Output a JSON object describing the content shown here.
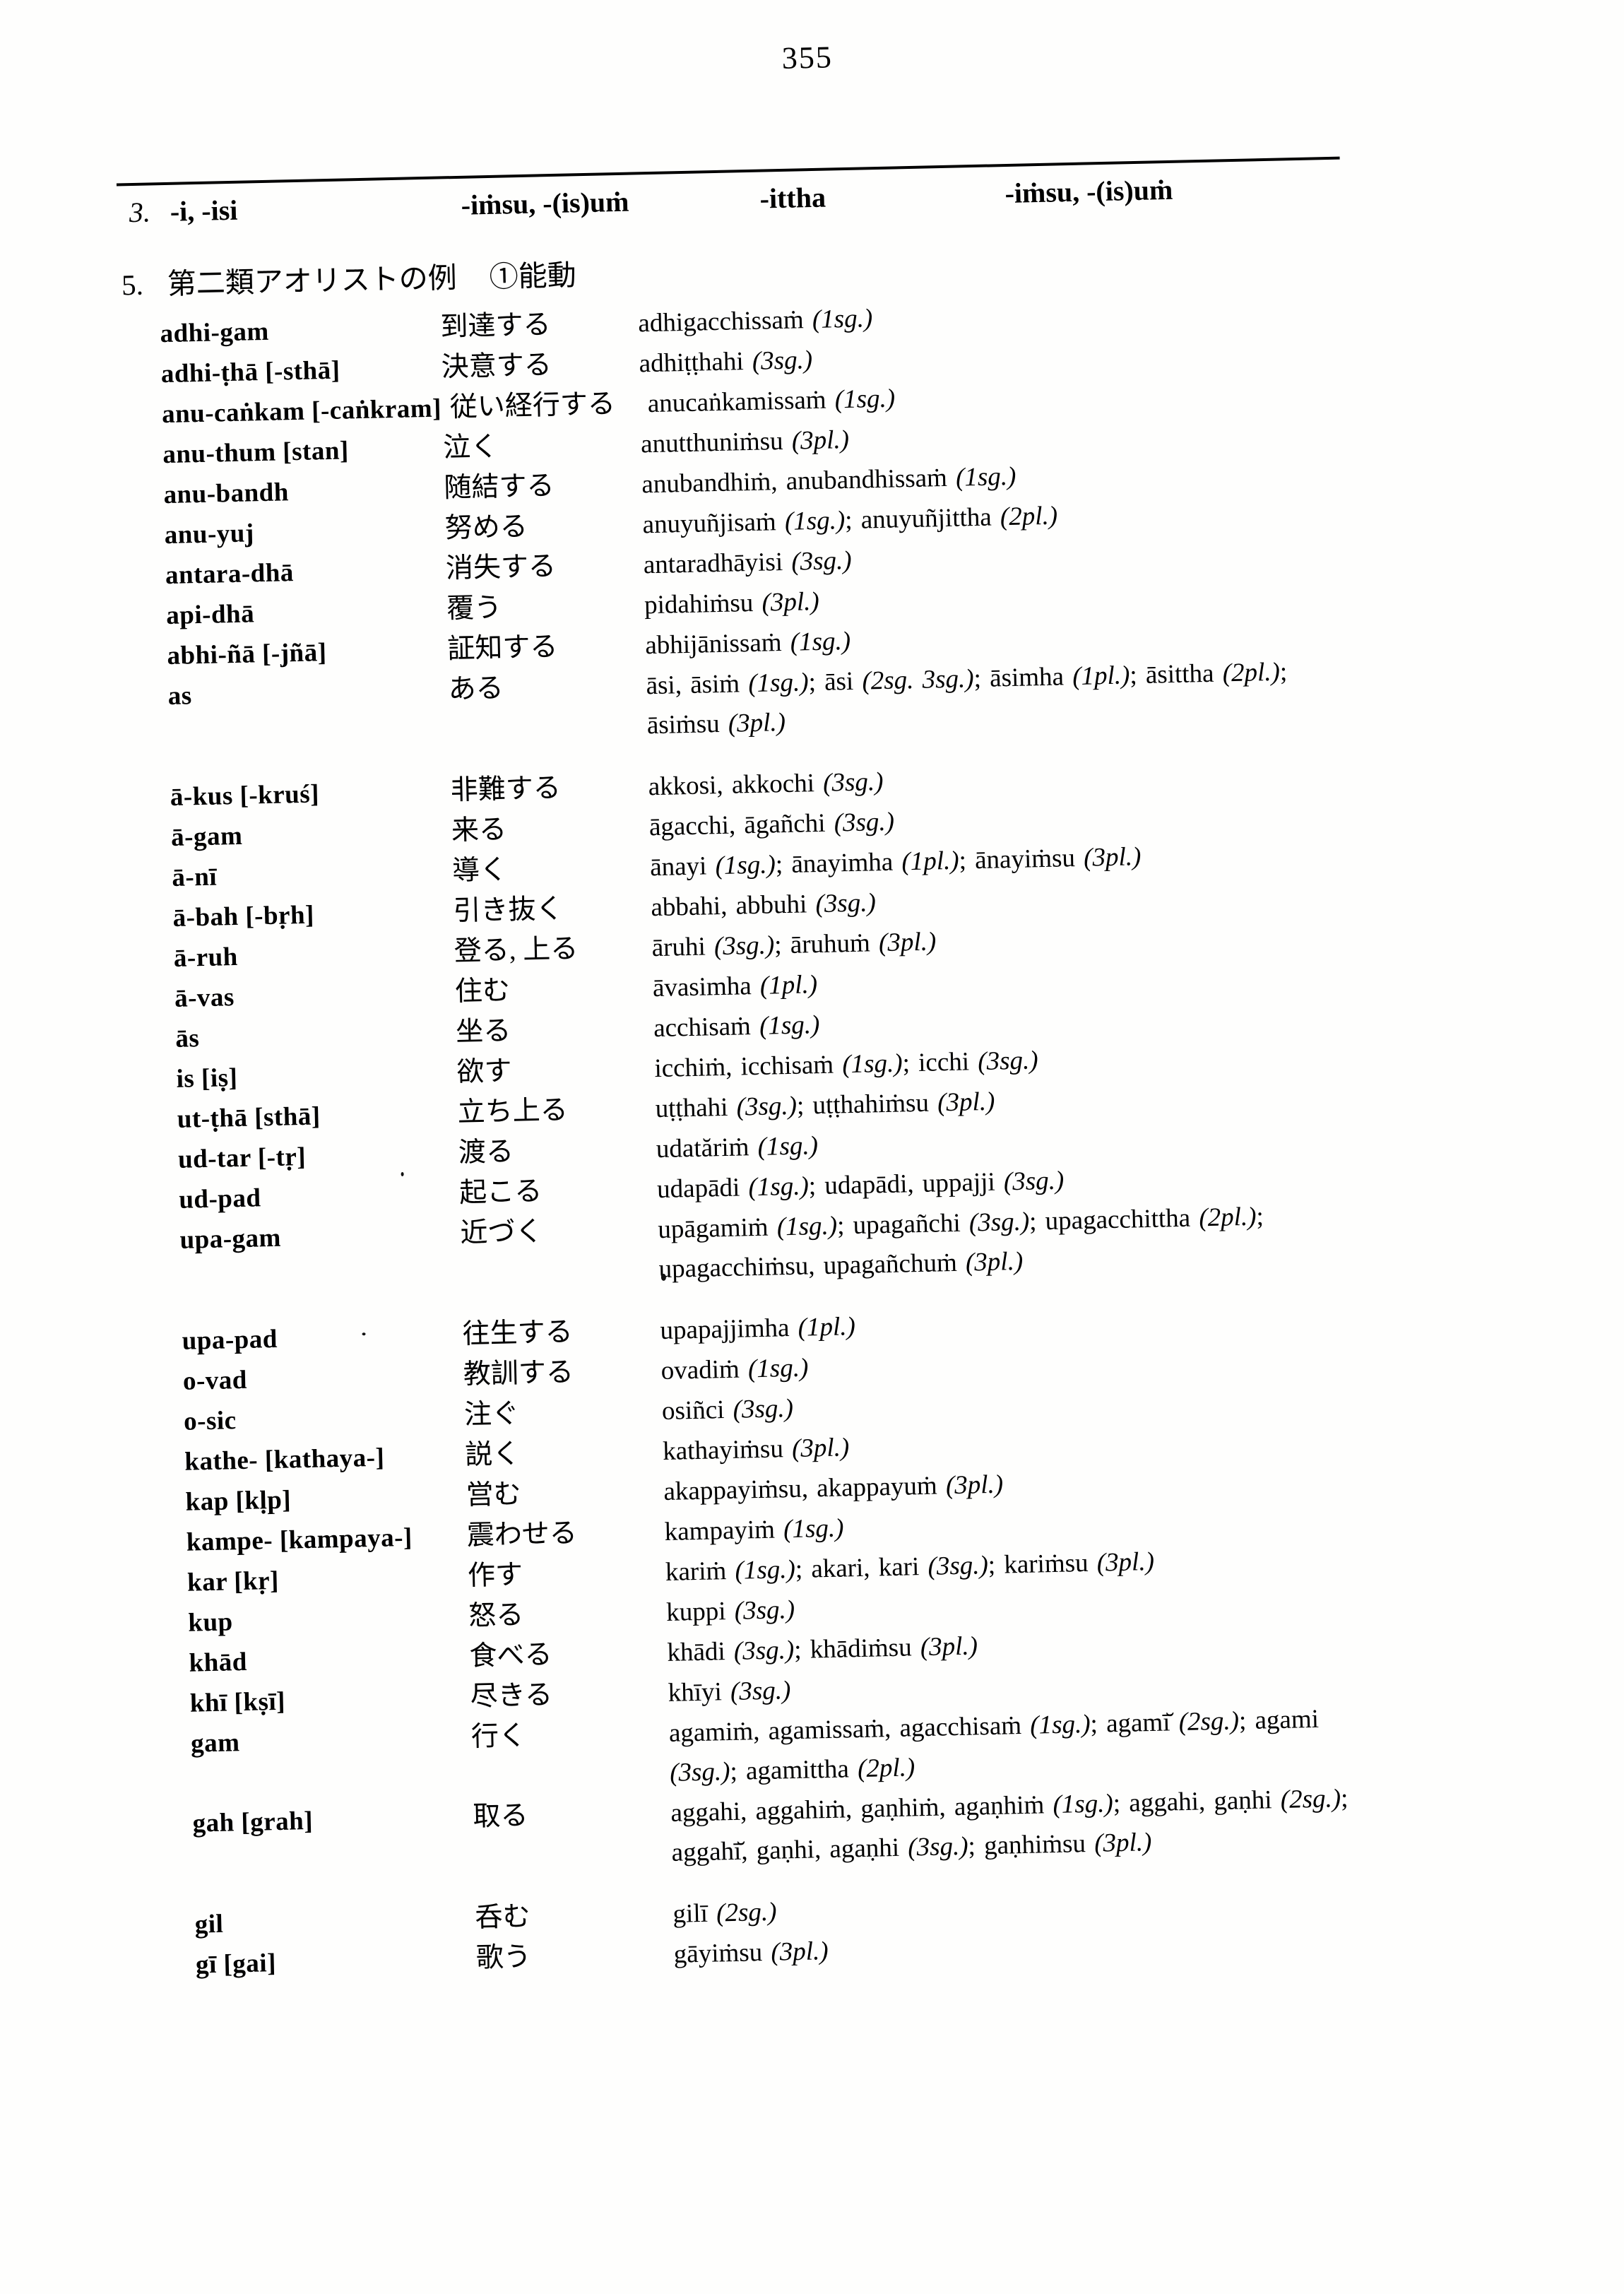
{
  "page": {
    "number": "355"
  },
  "header": {
    "row_label": "3.",
    "col1": "-i, -isi",
    "col2": "-iṁsu, -(is)uṁ",
    "col3": "-ittha",
    "col4": "-iṁsu, -(is)uṁ"
  },
  "section": {
    "number": "5.",
    "title": "第二類アオリストの例",
    "subtitle": "①能動"
  },
  "entries": [
    {
      "root": "adhi-gam",
      "gloss": "到達する",
      "forms": "adhigacchissaṁ (1sg.)"
    },
    {
      "root": "adhi-ṭhā [-sthā]",
      "gloss": "決意する",
      "forms": "adhiṭṭhahi (3sg.)"
    },
    {
      "root": "anu-caṅkam [-caṅkram]",
      "gloss": "従い経行する",
      "forms": "anucaṅkamissaṁ (1sg.)"
    },
    {
      "root": "anu-thum [stan]",
      "gloss": "泣く",
      "forms": "anutthuniṁsu (3pl.)"
    },
    {
      "root": "anu-bandh",
      "gloss": "随結する",
      "forms": "anubandhiṁ, anubandhissaṁ (1sg.)"
    },
    {
      "root": "anu-yuj",
      "gloss": "努める",
      "forms": "anuyuñjisaṁ (1sg.); anuyuñjittha (2pl.)"
    },
    {
      "root": "antara-dhā",
      "gloss": "消失する",
      "forms": "antaradhāyisi (3sg.)"
    },
    {
      "root": "api-dhā",
      "gloss": "覆う",
      "forms": "pidahiṁsu (3pl.)"
    },
    {
      "root": "abhi-ñā [-jñā]",
      "gloss": "証知する",
      "forms": "abhijānissaṁ (1sg.)"
    },
    {
      "root": "as",
      "gloss": "ある",
      "forms": "āsi, āsiṁ (1sg.); āsi (2sg. 3sg.); āsimha (1pl.); āsittha (2pl.); āsiṁsu (3pl.)"
    },
    {
      "root": "ā-kus [-kruś]",
      "gloss": "非難する",
      "forms": "akkosi, akkochi (3sg.)",
      "gap": true
    },
    {
      "root": "ā-gam",
      "gloss": "来る",
      "forms": "āgacchi, āgañchi (3sg.)"
    },
    {
      "root": "ā-nī",
      "gloss": "導く",
      "forms": "ānayi (1sg.); ānayimha (1pl.); ānayiṁsu (3pl.)"
    },
    {
      "root": "ā-bah [-bṛh]",
      "gloss": "引き抜く",
      "forms": "abbahi, abbuhi (3sg.)"
    },
    {
      "root": "ā-ruh",
      "gloss": "登る, 上る",
      "forms": "āruhi (3sg.); āruhuṁ (3pl.)"
    },
    {
      "root": "ā-vas",
      "gloss": "住む",
      "forms": "āvasimha (1pl.)"
    },
    {
      "root": "ās",
      "gloss": "坐る",
      "forms": "acchisaṁ (1sg.)"
    },
    {
      "root": "is [iṣ]",
      "gloss": "欲す",
      "forms": "icchiṁ, icchisaṁ (1sg.); icchi (3sg.)"
    },
    {
      "root": "ut-ṭhā [sthā]",
      "gloss": "立ち上る",
      "forms": "uṭṭhahi (3sg.); uṭṭhahiṁsu (3pl.)"
    },
    {
      "root": "ud-tar [-tṛ]",
      "gloss": "渡る",
      "forms": "udatăriṁ (1sg.)"
    },
    {
      "root": "ud-pad",
      "gloss": "起こる",
      "forms": "udapādi (1sg.); udapādi, uppajji (3sg.)"
    },
    {
      "root": "upa-gam",
      "gloss": "近づく",
      "forms": "upāgamiṁ (1sg.); upagañchi (3sg.); upagacchittha (2pl.); upagacchiṁsu, upagañchuṁ (3pl.)"
    },
    {
      "root": "upa-pad",
      "gloss": "往生する",
      "forms": "upapajjimha (1pl.)",
      "gap": true
    },
    {
      "root": "o-vad",
      "gloss": "教訓する",
      "forms": "ovadiṁ (1sg.)"
    },
    {
      "root": "o-sic",
      "gloss": "注ぐ",
      "forms": "osiñci (3sg.)"
    },
    {
      "root": "kathe- [kathaya-]",
      "gloss": "説く",
      "forms": "kathayiṁsu (3pl.)"
    },
    {
      "root": "kap [kḷp]",
      "gloss": "営む",
      "forms": "akappayiṁsu, akappayuṁ (3pl.)"
    },
    {
      "root": "kampe- [kampaya-]",
      "gloss": "震わせる",
      "forms": "kampayiṁ (1sg.)"
    },
    {
      "root": "kar [kṛ]",
      "gloss": "作す",
      "forms": "kariṁ (1sg.); akari, kari (3sg.); kariṁsu (3pl.)"
    },
    {
      "root": "kup",
      "gloss": "怒る",
      "forms": "kuppi (3sg.)"
    },
    {
      "root": "khād",
      "gloss": "食べる",
      "forms": "khādi (3sg.); khādiṁsu (3pl.)"
    },
    {
      "root": "khī [kṣī]",
      "gloss": "尽きる",
      "forms": "khīyi (3sg.)"
    },
    {
      "root": "gam",
      "gloss": "行く",
      "forms": "agamiṁ, agamissaṁ, agacchisaṁ (1sg.); agamī̆ (2sg.); agami (3sg.); agamittha (2pl.)"
    },
    {
      "root": "gah [grah]",
      "gloss": "取る",
      "forms": "aggahi, aggahiṁ, gaṇhiṁ, agaṇhiṁ (1sg.); aggahi, gaṇhi (2sg.); aggahī̆, gaṇhi, agaṇhi (3sg.); gaṇhiṁsu (3pl.)"
    },
    {
      "root": "gil",
      "gloss": "呑む",
      "forms": "gilī (2sg.)",
      "gap": true
    },
    {
      "root": "gī [gai]",
      "gloss": "歌う",
      "forms": "gāyiṁsu (3pl.)"
    }
  ]
}
